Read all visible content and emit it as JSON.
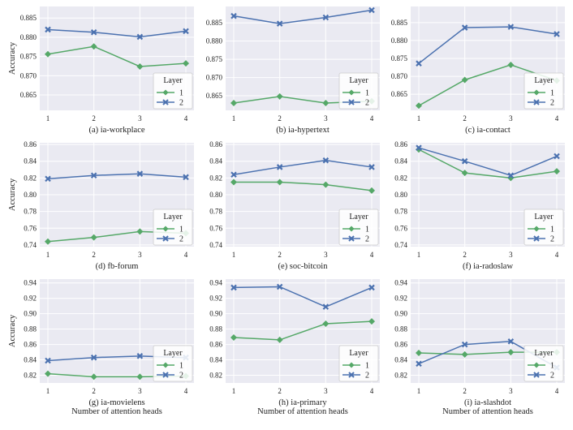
{
  "chart_data": [
    {
      "type": "line",
      "title": "(a) ia-workplace",
      "xlabel": "",
      "ylabel": "Accuracy",
      "x": [
        1,
        2,
        3,
        4
      ],
      "ylim": [
        0.861,
        0.888
      ],
      "yticks": [
        0.865,
        0.87,
        0.875,
        0.88,
        0.885
      ],
      "ytick_labels": [
        "0.865",
        "0.870",
        "0.875",
        "0.880",
        "0.885"
      ],
      "legend": {
        "title": "Layer",
        "placement": "lower-right"
      },
      "series": [
        {
          "name": "1",
          "color": "#55a868",
          "marker": "diamond",
          "values": [
            0.8756,
            0.8776,
            0.8724,
            0.8732
          ]
        },
        {
          "name": "2",
          "color": "#4c72b0",
          "marker": "x",
          "values": [
            0.882,
            0.8813,
            0.8801,
            0.8816
          ]
        }
      ]
    },
    {
      "type": "line",
      "title": "(b) ia-hypertext",
      "xlabel": "",
      "ylabel": "",
      "x": [
        1,
        2,
        3,
        4
      ],
      "ylim": [
        0.861,
        0.8895
      ],
      "yticks": [
        0.865,
        0.87,
        0.875,
        0.88,
        0.885
      ],
      "ytick_labels": [
        "0.865",
        "0.870",
        "0.875",
        "0.880",
        "0.885"
      ],
      "legend": {
        "title": "Layer",
        "placement": "lower-right"
      },
      "series": [
        {
          "name": "1",
          "color": "#55a868",
          "marker": "diamond",
          "values": [
            0.863,
            0.8648,
            0.863,
            0.8635
          ]
        },
        {
          "name": "2",
          "color": "#4c72b0",
          "marker": "x",
          "values": [
            0.8869,
            0.8848,
            0.8865,
            0.8885
          ]
        }
      ]
    },
    {
      "type": "line",
      "title": "(c) ia-contact",
      "xlabel": "",
      "ylabel": "",
      "x": [
        1,
        2,
        3,
        4
      ],
      "ylim": [
        0.8605,
        0.8895
      ],
      "yticks": [
        0.865,
        0.87,
        0.875,
        0.88,
        0.885
      ],
      "ytick_labels": [
        "0.865",
        "0.870",
        "0.875",
        "0.880",
        "0.885"
      ],
      "legend": {
        "title": "Layer",
        "placement": "lower-right"
      },
      "series": [
        {
          "name": "1",
          "color": "#55a868",
          "marker": "diamond",
          "values": [
            0.8618,
            0.869,
            0.8732,
            0.8688
          ]
        },
        {
          "name": "2",
          "color": "#4c72b0",
          "marker": "x",
          "values": [
            0.8736,
            0.8836,
            0.8838,
            0.8818
          ]
        }
      ]
    },
    {
      "type": "line",
      "title": "(d) fb-forum",
      "xlabel": "",
      "ylabel": "Accuracy",
      "x": [
        1,
        2,
        3,
        4
      ],
      "ylim": [
        0.738,
        0.862
      ],
      "yticks": [
        0.74,
        0.76,
        0.78,
        0.8,
        0.82,
        0.84,
        0.86
      ],
      "ytick_labels": [
        "0.74",
        "0.76",
        "0.78",
        "0.80",
        "0.82",
        "0.84",
        "0.86"
      ],
      "legend": {
        "title": "Layer",
        "placement": "lower-right"
      },
      "series": [
        {
          "name": "1",
          "color": "#55a868",
          "marker": "diamond",
          "values": [
            0.744,
            0.749,
            0.756,
            0.754
          ]
        },
        {
          "name": "2",
          "color": "#4c72b0",
          "marker": "x",
          "values": [
            0.819,
            0.823,
            0.825,
            0.821
          ]
        }
      ]
    },
    {
      "type": "line",
      "title": "(e) soc-bitcoin",
      "xlabel": "",
      "ylabel": "",
      "x": [
        1,
        2,
        3,
        4
      ],
      "ylim": [
        0.738,
        0.862
      ],
      "yticks": [
        0.74,
        0.76,
        0.78,
        0.8,
        0.82,
        0.84,
        0.86
      ],
      "ytick_labels": [
        "0.74",
        "0.76",
        "0.78",
        "0.80",
        "0.82",
        "0.84",
        "0.86"
      ],
      "legend": {
        "title": "Layer",
        "placement": "lower-right"
      },
      "series": [
        {
          "name": "1",
          "color": "#55a868",
          "marker": "diamond",
          "values": [
            0.815,
            0.815,
            0.812,
            0.805
          ]
        },
        {
          "name": "2",
          "color": "#4c72b0",
          "marker": "x",
          "values": [
            0.824,
            0.833,
            0.841,
            0.833
          ]
        }
      ]
    },
    {
      "type": "line",
      "title": "(f) ia-radoslaw",
      "xlabel": "",
      "ylabel": "",
      "x": [
        1,
        2,
        3,
        4
      ],
      "ylim": [
        0.738,
        0.862
      ],
      "yticks": [
        0.74,
        0.76,
        0.78,
        0.8,
        0.82,
        0.84,
        0.86
      ],
      "ytick_labels": [
        "0.74",
        "0.76",
        "0.78",
        "0.80",
        "0.82",
        "0.84",
        "0.86"
      ],
      "legend": {
        "title": "Layer",
        "placement": "lower-right"
      },
      "series": [
        {
          "name": "1",
          "color": "#55a868",
          "marker": "diamond",
          "values": [
            0.854,
            0.826,
            0.82,
            0.828
          ]
        },
        {
          "name": "2",
          "color": "#4c72b0",
          "marker": "x",
          "values": [
            0.856,
            0.84,
            0.823,
            0.846
          ]
        }
      ]
    },
    {
      "type": "line",
      "title": "(g) ia-movielens",
      "xlabel": "Number of attention heads",
      "ylabel": "Accuracy",
      "x": [
        1,
        2,
        3,
        4
      ],
      "ylim": [
        0.81,
        0.945
      ],
      "yticks": [
        0.82,
        0.84,
        0.86,
        0.88,
        0.9,
        0.92,
        0.94
      ],
      "ytick_labels": [
        "0.82",
        "0.84",
        "0.86",
        "0.88",
        "0.90",
        "0.92",
        "0.94"
      ],
      "legend": {
        "title": "Layer",
        "placement": "lower-right"
      },
      "series": [
        {
          "name": "1",
          "color": "#55a868",
          "marker": "diamond",
          "values": [
            0.822,
            0.818,
            0.818,
            0.819
          ]
        },
        {
          "name": "2",
          "color": "#4c72b0",
          "marker": "x",
          "values": [
            0.839,
            0.843,
            0.845,
            0.843
          ]
        }
      ]
    },
    {
      "type": "line",
      "title": "(h) ia-primary",
      "xlabel": "Number of attention heads",
      "ylabel": "",
      "x": [
        1,
        2,
        3,
        4
      ],
      "ylim": [
        0.81,
        0.945
      ],
      "yticks": [
        0.82,
        0.84,
        0.86,
        0.88,
        0.9,
        0.92,
        0.94
      ],
      "ytick_labels": [
        "0.82",
        "0.84",
        "0.86",
        "0.88",
        "0.90",
        "0.92",
        "0.94"
      ],
      "legend": {
        "title": "Layer",
        "placement": "lower-right"
      },
      "series": [
        {
          "name": "1",
          "color": "#55a868",
          "marker": "diamond",
          "values": [
            0.869,
            0.866,
            0.887,
            0.89
          ]
        },
        {
          "name": "2",
          "color": "#4c72b0",
          "marker": "x",
          "values": [
            0.934,
            0.935,
            0.909,
            0.934
          ]
        }
      ]
    },
    {
      "type": "line",
      "title": "(i) ia-slashdot",
      "xlabel": "Number of attention heads",
      "ylabel": "",
      "x": [
        1,
        2,
        3,
        4
      ],
      "ylim": [
        0.81,
        0.945
      ],
      "yticks": [
        0.82,
        0.84,
        0.86,
        0.88,
        0.9,
        0.92,
        0.94
      ],
      "ytick_labels": [
        "0.82",
        "0.84",
        "0.86",
        "0.88",
        "0.90",
        "0.92",
        "0.94"
      ],
      "legend": {
        "title": "Layer",
        "placement": "lower-right"
      },
      "series": [
        {
          "name": "1",
          "color": "#55a868",
          "marker": "diamond",
          "values": [
            0.849,
            0.847,
            0.85,
            0.85
          ]
        },
        {
          "name": "2",
          "color": "#4c72b0",
          "marker": "x",
          "values": [
            0.835,
            0.86,
            0.864,
            0.83
          ]
        }
      ]
    }
  ],
  "style": {
    "panel_background": "#eaeaf2",
    "grid_color": "#ffffff",
    "legend_background": "#ffffff",
    "legend_border": "#cccccc"
  }
}
